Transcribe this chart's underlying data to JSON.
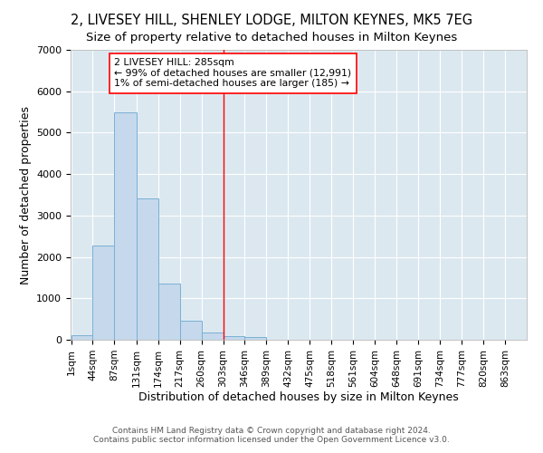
{
  "title": "2, LIVESEY HILL, SHENLEY LODGE, MILTON KEYNES, MK5 7EG",
  "subtitle": "Size of property relative to detached houses in Milton Keynes",
  "xlabel": "Distribution of detached houses by size in Milton Keynes",
  "ylabel": "Number of detached properties",
  "bin_edges": [
    1,
    44,
    87,
    131,
    174,
    217,
    260,
    303,
    346,
    389,
    432,
    475,
    518,
    561,
    604,
    648,
    691,
    734,
    777,
    820,
    863
  ],
  "bar_heights": [
    100,
    2270,
    5480,
    3420,
    1350,
    470,
    175,
    90,
    75,
    0,
    0,
    0,
    0,
    0,
    0,
    0,
    0,
    0,
    0,
    0
  ],
  "bar_color": "#c5d8ec",
  "bar_edge_color": "#7ab0d4",
  "bg_color": "#dce8f0",
  "grid_color": "#ffffff",
  "red_line_x": 303,
  "ylim": [
    0,
    7000
  ],
  "annotation_box_text": "2 LIVESEY HILL: 285sqm\n← 99% of detached houses are smaller (12,991)\n1% of semi-detached houses are larger (185) →",
  "title_fontsize": 10.5,
  "subtitle_fontsize": 9.5,
  "tick_fontsize": 7.5,
  "axis_label_fontsize": 9,
  "footer_text": "Contains HM Land Registry data © Crown copyright and database right 2024.\nContains public sector information licensed under the Open Government Licence v3.0.",
  "footer_fontsize": 6.5
}
